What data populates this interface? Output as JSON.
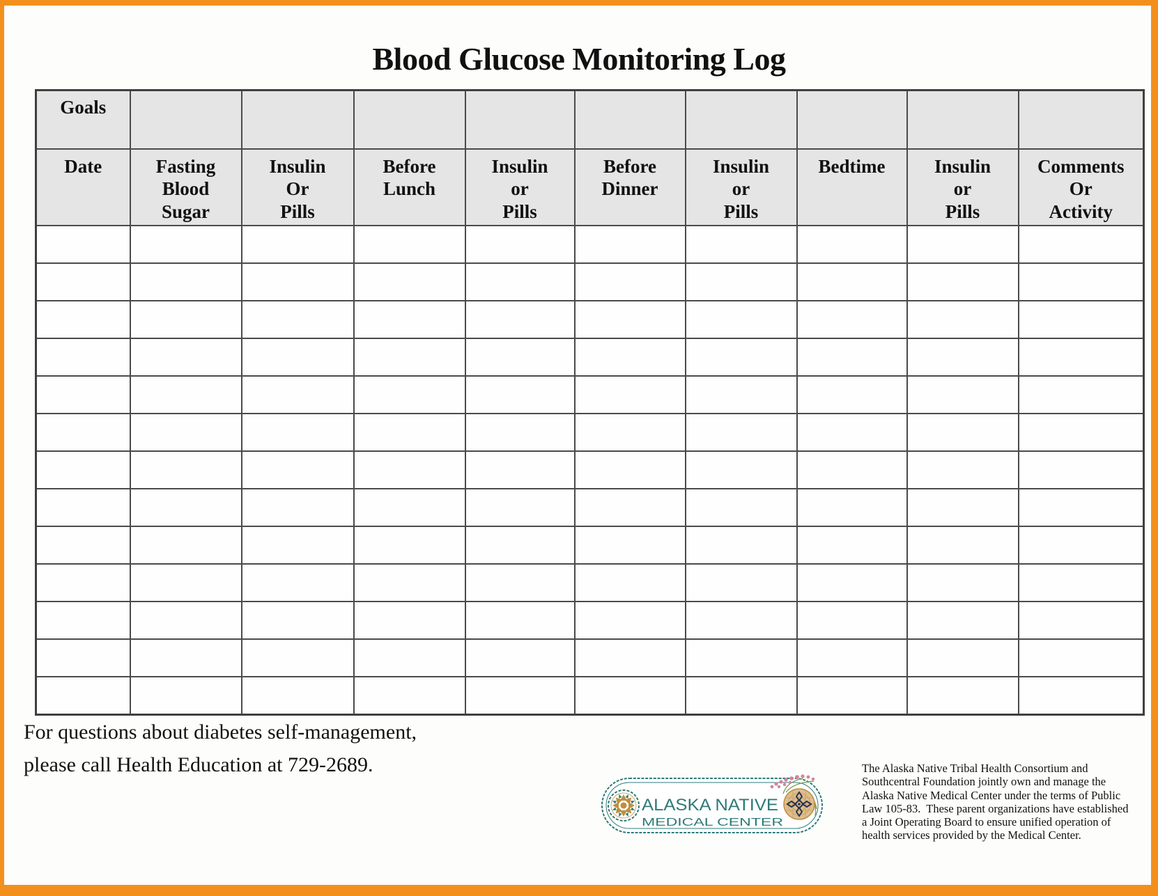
{
  "page": {
    "title": "Blood Glucose Monitoring Log",
    "footer_note": "For questions about diabetes self-management,\nplease call Health Education at 729-2689.",
    "disclaimer": "The Alaska Native Tribal Health Consortium and\nSouthcentral Foundation jointly own and manage the\nAlaska Native Medical Center under the terms of Public\nLaw 105-83.  These parent organizations have established\na Joint Operating Board to ensure unified operation of\nhealth services provided by the Medical Center."
  },
  "logo": {
    "name_line1": "ALASKA NATIVE",
    "name_line2": "MEDICAL CENTER"
  },
  "table": {
    "goals_label": "Goals",
    "columns": [
      {
        "label": "Date"
      },
      {
        "label": "Fasting\nBlood\nSugar"
      },
      {
        "label": "Insulin\nOr\nPills"
      },
      {
        "label": "Before\nLunch"
      },
      {
        "label": "Insulin\nor\nPills"
      },
      {
        "label": "Before\nDinner"
      },
      {
        "label": "Insulin\nor\nPills"
      },
      {
        "label": "Bedtime"
      },
      {
        "label": "Insulin\nor\nPills"
      },
      {
        "label": "Comments\nOr\nActivity"
      }
    ],
    "body_rows": 13
  },
  "colors": {
    "frame_orange": "#F3901D",
    "brand_teal": "#2E7B78",
    "header_gray": "#E5E5E5",
    "border_gray": "#4A4A4A",
    "basket_tan": "#DDBE8F",
    "emblem_gold": "#C08F3E",
    "flower_pink": "#D3849E",
    "leaf_green": "#7FA05E",
    "ink": "#111111"
  }
}
